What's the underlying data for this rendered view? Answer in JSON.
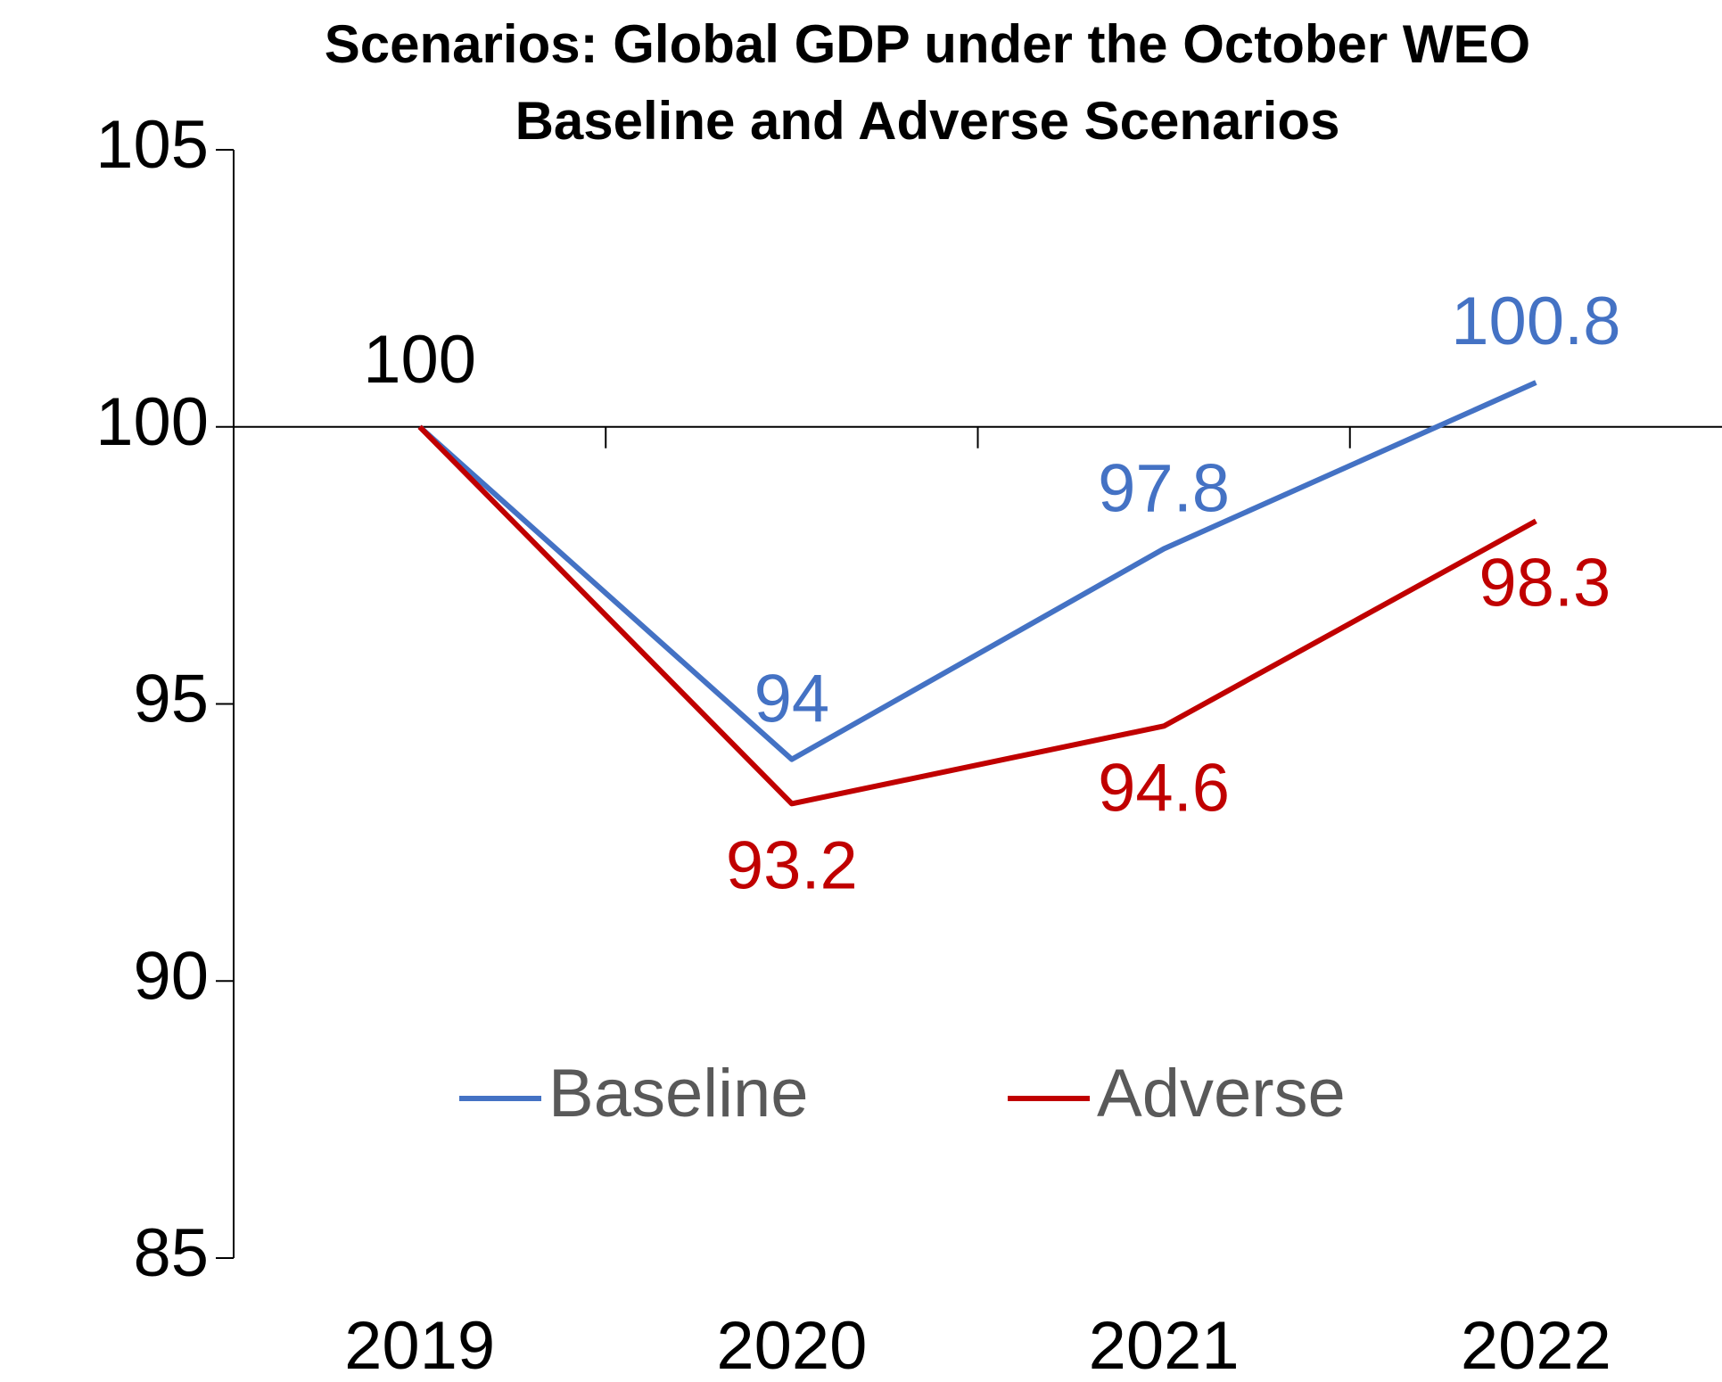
{
  "chart_data": {
    "type": "line",
    "title": [
      "Scenarios: Global GDP under the October WEO",
      "Baseline and Adverse Scenarios"
    ],
    "categories": [
      "2019",
      "2020",
      "2021",
      "2022"
    ],
    "series": [
      {
        "name": "Baseline",
        "color": "#4472c4",
        "values": [
          100,
          94,
          97.8,
          100.8
        ]
      },
      {
        "name": "Adverse",
        "color": "#c00000",
        "values": [
          100,
          93.2,
          94.6,
          98.3
        ]
      }
    ],
    "ylim": [
      85,
      105
    ],
    "yticks": [
      85,
      90,
      95,
      100,
      105
    ],
    "x_axis_crossing": 100,
    "legend": "bottom",
    "grid": false
  }
}
